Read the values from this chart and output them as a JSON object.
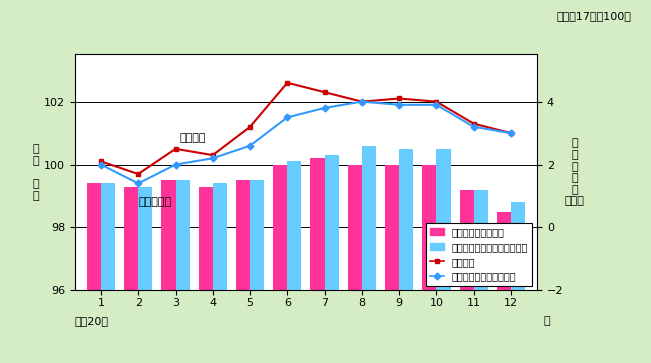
{
  "months": [
    1,
    2,
    3,
    4,
    5,
    6,
    7,
    8,
    9,
    10,
    11,
    12
  ],
  "month_labels": [
    "1",
    "2",
    "3",
    "4",
    "5",
    "6",
    "7",
    "8",
    "9",
    "10",
    "11",
    "12"
  ],
  "sogo_index": [
    100.1,
    99.7,
    100.5,
    100.3,
    101.2,
    102.6,
    102.3,
    102.0,
    102.1,
    102.0,
    101.3,
    101.0
  ],
  "seisen_index": [
    100.0,
    99.4,
    100.0,
    100.2,
    100.6,
    101.5,
    101.8,
    102.0,
    101.9,
    101.9,
    101.2,
    101.0
  ],
  "bar_sogo": [
    99.4,
    99.3,
    99.5,
    99.3,
    99.5,
    100.0,
    100.2,
    100.0,
    100.0,
    100.0,
    99.2,
    98.5
  ],
  "bar_seisen": [
    99.4,
    99.3,
    99.5,
    99.4,
    99.5,
    100.1,
    100.3,
    100.6,
    100.5,
    100.5,
    99.2,
    98.8
  ],
  "left_ylim": [
    96.0,
    103.5
  ],
  "right_ylim": [
    -2.0,
    5.5
  ],
  "left_yticks": [
    96.0,
    98.0,
    100.0,
    102.0
  ],
  "right_yticks": [
    -2.0,
    0.0,
    2.0,
    4.0
  ],
  "bg_color": "#d4edc4",
  "plot_bg": "#ffffff",
  "bar_color_sogo": "#ff3399",
  "bar_color_seisen": "#66ccff",
  "line_color_sogo": "#cc0000",
  "line_color_seisen": "#3399ff",
  "xlabel_left": "平成20年",
  "xlabel_right": "月",
  "ylabel_left": "総\n合\n\n指\n数",
  "ylabel_right": "前\n年\n同\n月\n比\n（％）",
  "title_note": "（平成17年＝100）",
  "legend_bar_sogo": "前年同月比（総合）",
  "legend_bar_seisen": "前年同月比（生鮮除く総合）",
  "legend_line_sogo": "総合指数",
  "legend_line_seisen": "生鮮食品を除く総合指数",
  "annotation_sogo": "総合指数",
  "annotation_yoy": "前年同月比",
  "fontsize": 8
}
